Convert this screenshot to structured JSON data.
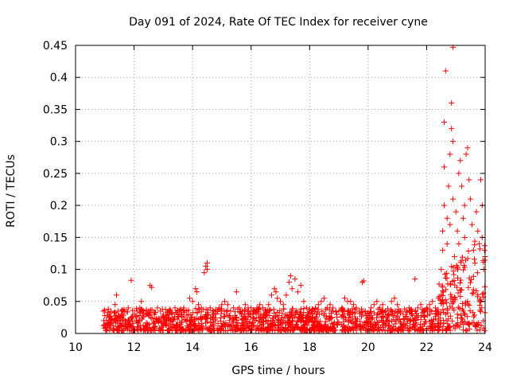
{
  "chart_data": {
    "type": "scatter",
    "title": "Day 091 of 2024, Rate Of TEC Index for receiver cyne",
    "xlabel": "GPS time / hours",
    "ylabel": "ROTI / TECUs",
    "xlim": [
      10,
      24
    ],
    "ylim": [
      0,
      0.45
    ],
    "x_ticks": [
      "10",
      "12",
      "14",
      "16",
      "18",
      "20",
      "22",
      "24"
    ],
    "y_ticks": [
      "0",
      "0.05",
      "0.1",
      "0.15",
      "0.2",
      "0.25",
      "0.3",
      "0.35",
      "0.4",
      "0.45"
    ],
    "grid": true,
    "marker": "+",
    "color": "#ff0000",
    "series": [
      {
        "name": "",
        "points": [
          [
            10.95,
            0.035
          ],
          [
            11.0,
            0.028
          ],
          [
            11.05,
            0.02
          ],
          [
            11.1,
            0.015
          ],
          [
            11.15,
            0.025
          ],
          [
            11.2,
            0.012
          ],
          [
            11.3,
            0.02
          ],
          [
            11.35,
            0.045
          ],
          [
            11.4,
            0.06
          ],
          [
            11.45,
            0.035
          ],
          [
            11.5,
            0.025
          ],
          [
            11.6,
            0.03
          ],
          [
            11.7,
            0.02
          ],
          [
            11.8,
            0.04
          ],
          [
            11.9,
            0.025
          ],
          [
            11.9,
            0.083
          ],
          [
            12.0,
            0.03
          ],
          [
            12.1,
            0.035
          ],
          [
            12.2,
            0.04
          ],
          [
            12.25,
            0.05
          ],
          [
            12.3,
            0.025
          ],
          [
            12.4,
            0.03
          ],
          [
            12.5,
            0.035
          ],
          [
            12.55,
            0.075
          ],
          [
            12.6,
            0.072
          ],
          [
            12.7,
            0.03
          ],
          [
            12.8,
            0.04
          ],
          [
            12.9,
            0.035
          ],
          [
            13.0,
            0.03
          ],
          [
            13.1,
            0.025
          ],
          [
            13.2,
            0.035
          ],
          [
            13.3,
            0.03
          ],
          [
            13.4,
            0.04
          ],
          [
            13.5,
            0.03
          ],
          [
            13.6,
            0.035
          ],
          [
            13.7,
            0.04
          ],
          [
            13.8,
            0.035
          ],
          [
            13.9,
            0.055
          ],
          [
            14.0,
            0.05
          ],
          [
            14.1,
            0.07
          ],
          [
            14.15,
            0.065
          ],
          [
            14.2,
            0.045
          ],
          [
            14.3,
            0.04
          ],
          [
            14.4,
            0.095
          ],
          [
            14.45,
            0.105
          ],
          [
            14.5,
            0.1
          ],
          [
            14.5,
            0.11
          ],
          [
            14.6,
            0.04
          ],
          [
            14.7,
            0.035
          ],
          [
            14.8,
            0.03
          ],
          [
            14.9,
            0.04
          ],
          [
            15.0,
            0.045
          ],
          [
            15.1,
            0.05
          ],
          [
            15.2,
            0.045
          ],
          [
            15.3,
            0.035
          ],
          [
            15.4,
            0.04
          ],
          [
            15.5,
            0.065
          ],
          [
            15.6,
            0.04
          ],
          [
            15.7,
            0.035
          ],
          [
            15.8,
            0.045
          ],
          [
            15.9,
            0.04
          ],
          [
            16.0,
            0.04
          ],
          [
            16.1,
            0.035
          ],
          [
            16.2,
            0.04
          ],
          [
            16.3,
            0.045
          ],
          [
            16.4,
            0.04
          ],
          [
            16.5,
            0.035
          ],
          [
            16.6,
            0.045
          ],
          [
            16.7,
            0.06
          ],
          [
            16.8,
            0.07
          ],
          [
            16.85,
            0.065
          ],
          [
            16.9,
            0.055
          ],
          [
            17.0,
            0.05
          ],
          [
            17.1,
            0.045
          ],
          [
            17.2,
            0.06
          ],
          [
            17.3,
            0.08
          ],
          [
            17.35,
            0.09
          ],
          [
            17.4,
            0.07
          ],
          [
            17.5,
            0.085
          ],
          [
            17.6,
            0.065
          ],
          [
            17.7,
            0.075
          ],
          [
            17.8,
            0.05
          ],
          [
            17.9,
            0.04
          ],
          [
            18.0,
            0.035
          ],
          [
            18.1,
            0.03
          ],
          [
            18.2,
            0.04
          ],
          [
            18.3,
            0.045
          ],
          [
            18.4,
            0.05
          ],
          [
            18.5,
            0.055
          ],
          [
            18.6,
            0.04
          ],
          [
            18.7,
            0.045
          ],
          [
            18.8,
            0.04
          ],
          [
            18.9,
            0.035
          ],
          [
            19.0,
            0.035
          ],
          [
            19.1,
            0.04
          ],
          [
            19.2,
            0.055
          ],
          [
            19.3,
            0.05
          ],
          [
            19.4,
            0.05
          ],
          [
            19.5,
            0.045
          ],
          [
            19.6,
            0.04
          ],
          [
            19.7,
            0.035
          ],
          [
            19.8,
            0.08
          ],
          [
            19.85,
            0.082
          ],
          [
            19.9,
            0.035
          ],
          [
            20.0,
            0.03
          ],
          [
            20.1,
            0.04
          ],
          [
            20.2,
            0.045
          ],
          [
            20.3,
            0.05
          ],
          [
            20.4,
            0.04
          ],
          [
            20.5,
            0.045
          ],
          [
            20.6,
            0.035
          ],
          [
            20.7,
            0.03
          ],
          [
            20.8,
            0.05
          ],
          [
            20.9,
            0.055
          ],
          [
            21.0,
            0.045
          ],
          [
            21.1,
            0.035
          ],
          [
            21.2,
            0.03
          ],
          [
            21.3,
            0.035
          ],
          [
            21.4,
            0.04
          ],
          [
            21.5,
            0.035
          ],
          [
            21.6,
            0.085
          ],
          [
            21.7,
            0.04
          ],
          [
            21.8,
            0.045
          ],
          [
            21.9,
            0.035
          ],
          [
            22.0,
            0.04
          ],
          [
            22.1,
            0.045
          ],
          [
            22.2,
            0.05
          ],
          [
            22.3,
            0.04
          ],
          [
            22.4,
            0.055
          ],
          [
            22.5,
            0.06
          ],
          [
            22.5,
            0.1
          ],
          [
            22.55,
            0.13
          ],
          [
            22.55,
            0.16
          ],
          [
            22.6,
            0.2
          ],
          [
            22.6,
            0.26
          ],
          [
            22.6,
            0.33
          ],
          [
            22.65,
            0.41
          ],
          [
            22.7,
            0.18
          ],
          [
            22.7,
            0.14
          ],
          [
            22.75,
            0.23
          ],
          [
            22.8,
            0.17
          ],
          [
            22.8,
            0.28
          ],
          [
            22.85,
            0.32
          ],
          [
            22.85,
            0.36
          ],
          [
            22.9,
            0.447
          ],
          [
            22.9,
            0.3
          ],
          [
            22.9,
            0.21
          ],
          [
            22.95,
            0.12
          ],
          [
            23.0,
            0.19
          ],
          [
            23.05,
            0.16
          ],
          [
            23.1,
            0.14
          ],
          [
            23.1,
            0.25
          ],
          [
            23.15,
            0.27
          ],
          [
            23.2,
            0.23
          ],
          [
            23.25,
            0.18
          ],
          [
            23.3,
            0.2
          ],
          [
            23.3,
            0.15
          ],
          [
            23.35,
            0.28
          ],
          [
            23.4,
            0.29
          ],
          [
            23.45,
            0.24
          ],
          [
            23.5,
            0.21
          ],
          [
            23.55,
            0.17
          ],
          [
            23.6,
            0.13
          ],
          [
            23.65,
            0.11
          ],
          [
            23.7,
            0.19
          ],
          [
            23.75,
            0.16
          ],
          [
            23.8,
            0.14
          ],
          [
            23.85,
            0.24
          ],
          [
            23.9,
            0.2
          ],
          [
            23.9,
            0.15
          ],
          [
            23.95,
            0.1
          ],
          [
            24.0,
            0.12
          ]
        ]
      }
    ]
  }
}
